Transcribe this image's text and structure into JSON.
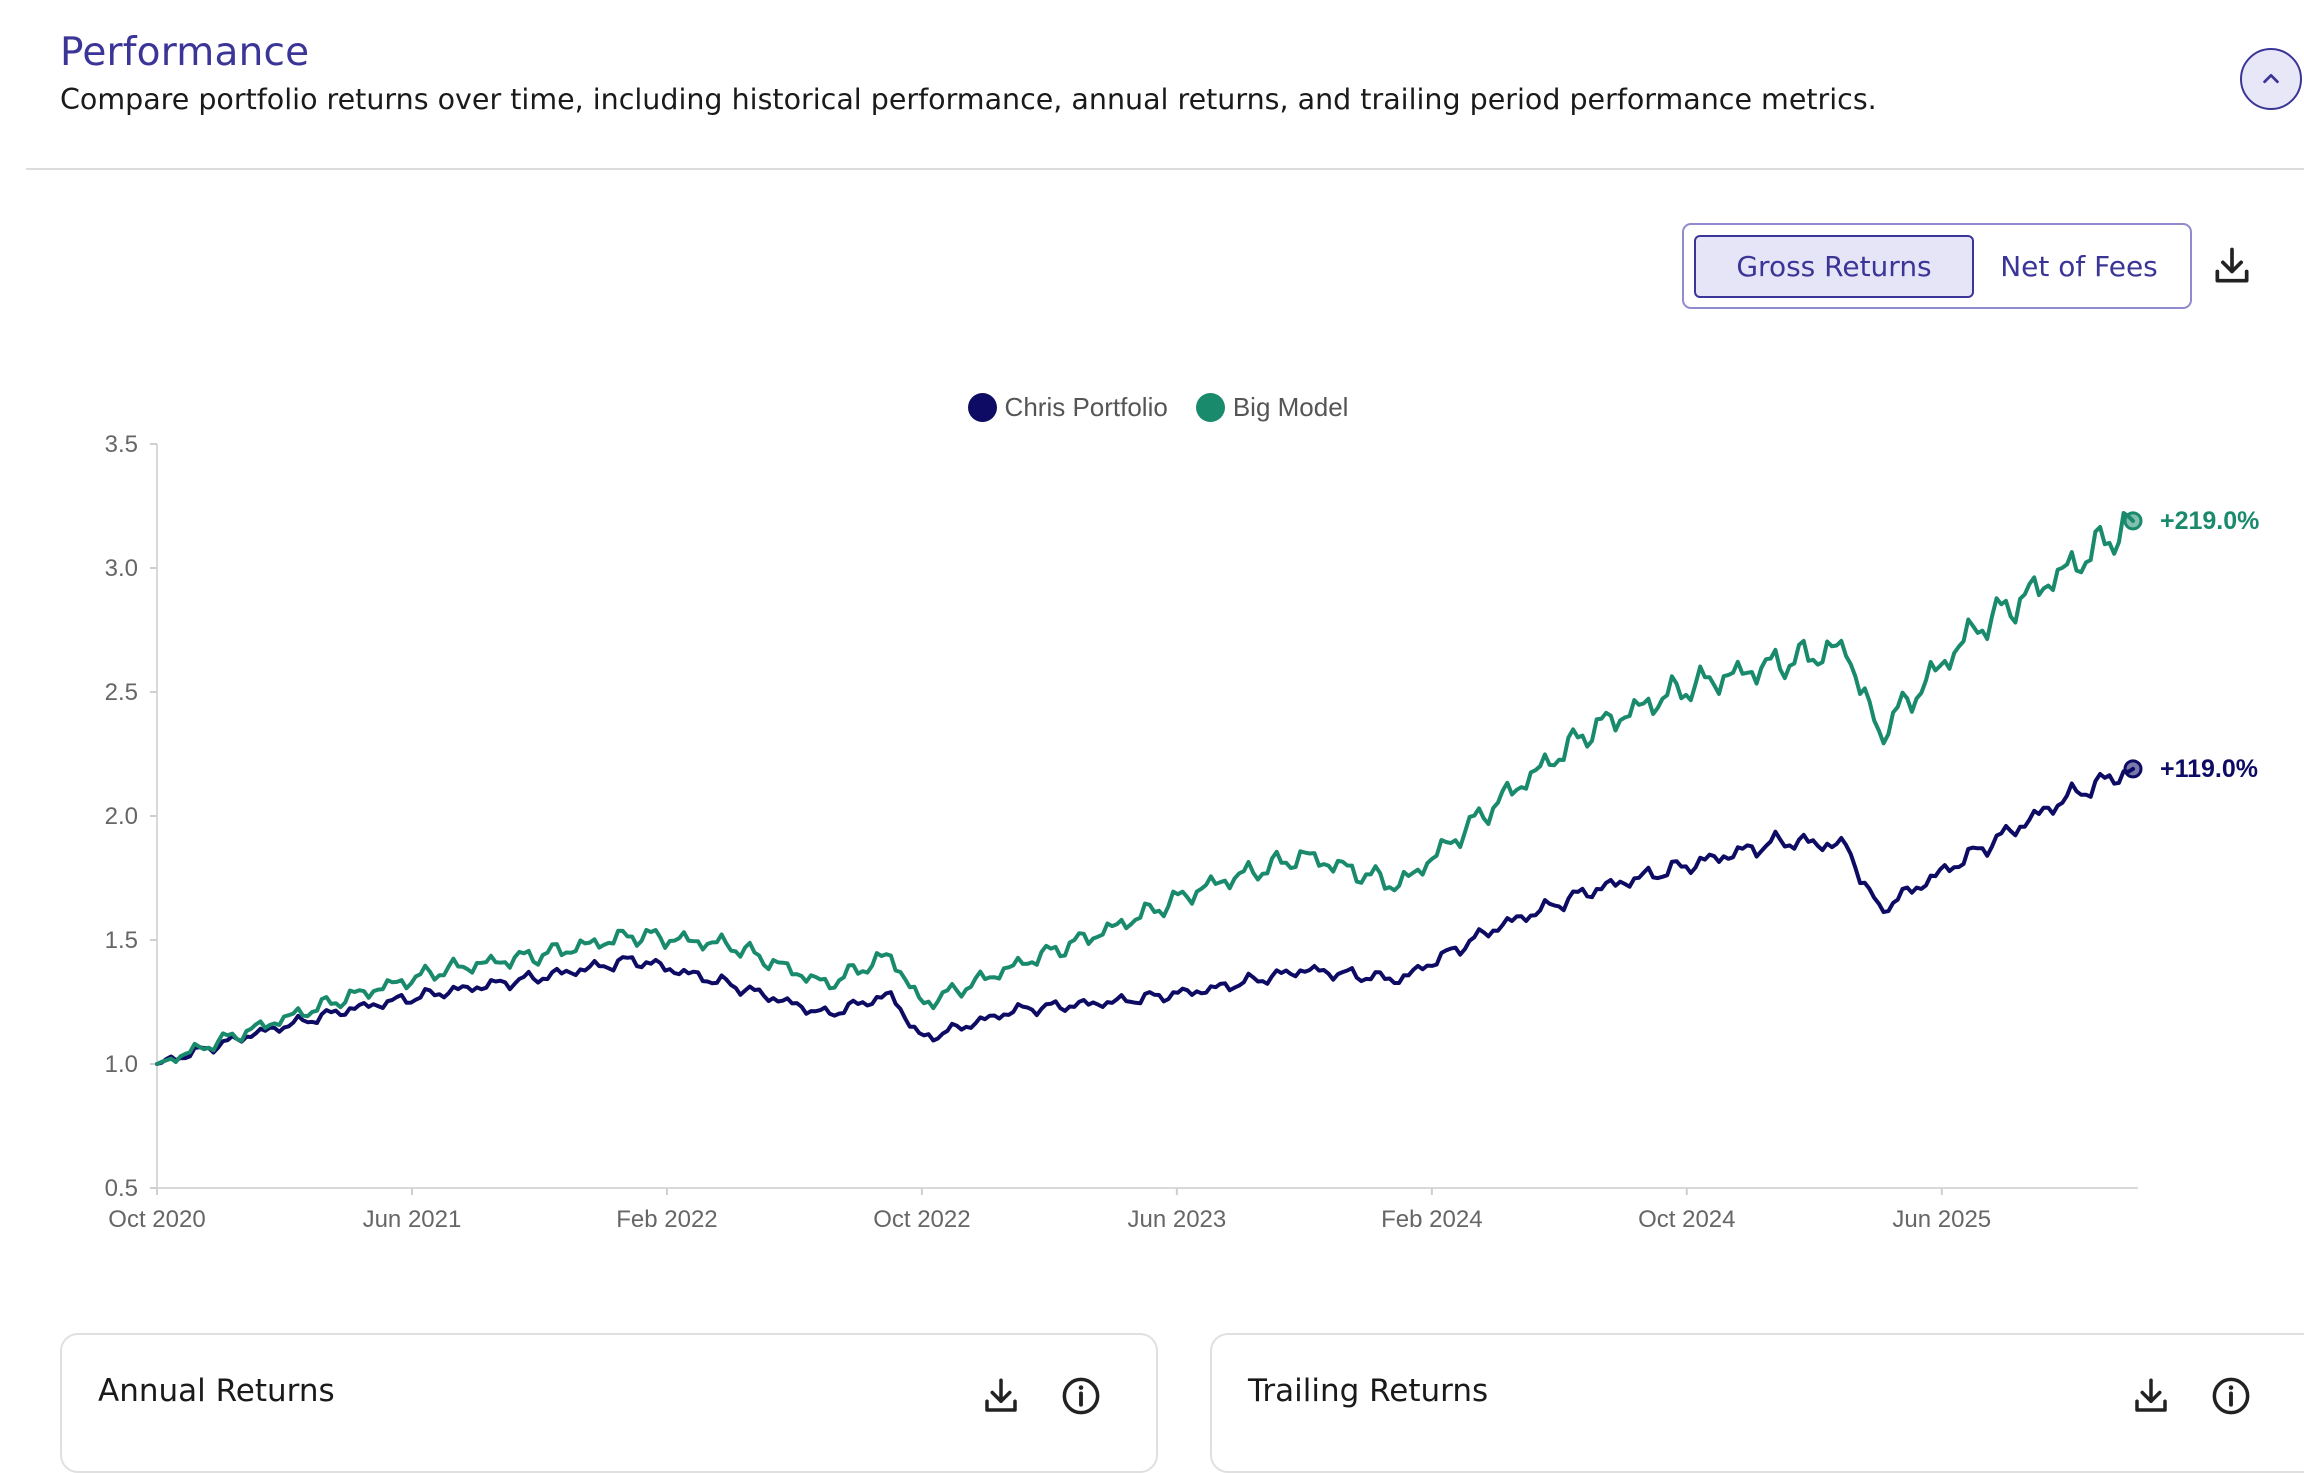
{
  "header": {
    "title": "Performance",
    "subtitle": "Compare portfolio returns over time, including historical performance, annual returns, and trailing period performance metrics."
  },
  "toggle": {
    "gross_label": "Gross Returns",
    "net_label": "Net of Fees",
    "selected": "Gross Returns"
  },
  "icons": {
    "collapse": "chevron-up-icon",
    "download": "download-icon",
    "info": "info-icon"
  },
  "colors": {
    "accent": "#3b3597",
    "chris": "#0d0b63",
    "model": "#1a8a6d"
  },
  "chart_data": {
    "type": "line",
    "ylim": [
      0.5,
      3.5
    ],
    "yticks": [
      "0.5",
      "1.0",
      "1.5",
      "2.0",
      "2.5",
      "3.0",
      "3.5"
    ],
    "xticks": [
      "Oct 2020",
      "Jun 2021",
      "Feb 2022",
      "Oct 2022",
      "Jun 2023",
      "Feb 2024",
      "Oct 2024",
      "Jun 2025"
    ],
    "x_start": "Oct 2020",
    "x_end": "Dec 2025",
    "x": [
      "Oct 2020",
      "Jan 2021",
      "Apr 2021",
      "Jul 2021",
      "Oct 2021",
      "Jan 2022",
      "Apr 2022",
      "Jul 2022",
      "Sep 2022",
      "Oct 2022",
      "Jan 2023",
      "Apr 2023",
      "Jul 2023",
      "Oct 2023",
      "Jan 2024",
      "Apr 2024",
      "Jul 2024",
      "Oct 2024",
      "Jan 2025",
      "Mar 2025",
      "Apr 2025",
      "Jul 2025",
      "Oct 2025",
      "Dec 2025"
    ],
    "series": [
      {
        "name": "Chris Portfolio",
        "color": "#0d0b63",
        "end_label": "+119.0%",
        "values": [
          1.0,
          1.12,
          1.22,
          1.29,
          1.35,
          1.42,
          1.32,
          1.2,
          1.28,
          1.1,
          1.22,
          1.25,
          1.3,
          1.38,
          1.34,
          1.55,
          1.7,
          1.8,
          1.9,
          1.88,
          1.62,
          1.85,
          2.08,
          2.19
        ]
      },
      {
        "name": "Big Model",
        "color": "#1a8a6d",
        "end_label": "+219.0%",
        "values": [
          1.0,
          1.14,
          1.27,
          1.38,
          1.44,
          1.52,
          1.48,
          1.32,
          1.44,
          1.24,
          1.4,
          1.55,
          1.72,
          1.84,
          1.72,
          2.05,
          2.35,
          2.52,
          2.62,
          2.68,
          2.33,
          2.75,
          3.0,
          3.19
        ]
      }
    ]
  },
  "cards": [
    {
      "title": "Annual Returns"
    },
    {
      "title": "Trailing Returns"
    }
  ]
}
